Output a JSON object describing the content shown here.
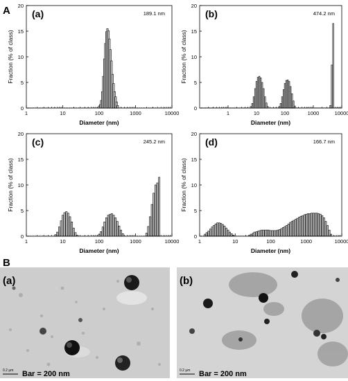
{
  "section_a_label": "A",
  "section_b_label": "B",
  "chart_data": [
    {
      "type": "bar",
      "panel_label": "(a)",
      "annotation": "189.1 nm",
      "xlabel": "Diameter (nm)",
      "ylabel": "Fraction (% of class)",
      "x_scale": "log",
      "xlim": [
        1,
        10000
      ],
      "ylim": [
        0,
        20
      ],
      "x_ticks": [
        "1",
        "10",
        "100",
        "1000",
        "10000"
      ],
      "y_ticks": [
        "0",
        "5",
        "10",
        "15",
        "20"
      ],
      "bars": [
        {
          "x": 100,
          "y": 0.3
        },
        {
          "x": 107,
          "y": 0.7
        },
        {
          "x": 114,
          "y": 1.5
        },
        {
          "x": 122,
          "y": 3.2
        },
        {
          "x": 130,
          "y": 6.2
        },
        {
          "x": 139,
          "y": 9.6
        },
        {
          "x": 148,
          "y": 12.6
        },
        {
          "x": 158,
          "y": 14.9
        },
        {
          "x": 169,
          "y": 15.5
        },
        {
          "x": 180,
          "y": 15.1
        },
        {
          "x": 192,
          "y": 13.5
        },
        {
          "x": 205,
          "y": 11.4
        },
        {
          "x": 219,
          "y": 9.2
        },
        {
          "x": 234,
          "y": 6.6
        },
        {
          "x": 250,
          "y": 4.8
        },
        {
          "x": 267,
          "y": 3.2
        },
        {
          "x": 285,
          "y": 2.2
        },
        {
          "x": 304,
          "y": 1.2
        },
        {
          "x": 325,
          "y": 0.5
        }
      ]
    },
    {
      "type": "bar",
      "panel_label": "(b)",
      "annotation": "474.2 nm",
      "xlabel": "Diameter (nm)",
      "ylabel": "Fraction (% of class)",
      "x_scale": "log",
      "xlim": [
        0.1,
        10000
      ],
      "ylim": [
        0,
        20
      ],
      "x_ticks": [
        "1",
        "10",
        "100",
        "1000",
        "10000"
      ],
      "y_ticks": [
        "0",
        "5",
        "10",
        "15",
        "20"
      ],
      "bars": [
        {
          "x": 6.3,
          "y": 0.3
        },
        {
          "x": 7.1,
          "y": 0.9
        },
        {
          "x": 8,
          "y": 2.2
        },
        {
          "x": 9,
          "y": 3.8
        },
        {
          "x": 10,
          "y": 5.2
        },
        {
          "x": 11.2,
          "y": 6
        },
        {
          "x": 12.6,
          "y": 6.2
        },
        {
          "x": 14.1,
          "y": 5.9
        },
        {
          "x": 15.8,
          "y": 5
        },
        {
          "x": 17.8,
          "y": 3.8
        },
        {
          "x": 20,
          "y": 2.2
        },
        {
          "x": 22.4,
          "y": 1
        },
        {
          "x": 25,
          "y": 0.3
        },
        {
          "x": 63,
          "y": 0.3
        },
        {
          "x": 71,
          "y": 0.9
        },
        {
          "x": 80,
          "y": 2.2
        },
        {
          "x": 90,
          "y": 3.6
        },
        {
          "x": 100,
          "y": 4.8
        },
        {
          "x": 112,
          "y": 5.4
        },
        {
          "x": 126,
          "y": 5.5
        },
        {
          "x": 141,
          "y": 5.2
        },
        {
          "x": 158,
          "y": 4.2
        },
        {
          "x": 178,
          "y": 2.8
        },
        {
          "x": 200,
          "y": 1.4
        },
        {
          "x": 224,
          "y": 0.4
        },
        {
          "x": 3980,
          "y": 0.5
        },
        {
          "x": 4470,
          "y": 8.4
        },
        {
          "x": 5010,
          "y": 16.5
        }
      ]
    },
    {
      "type": "bar",
      "panel_label": "(c)",
      "annotation": "245.2 nm",
      "xlabel": "Diameter (nm)",
      "ylabel": "Fraction (% of class)",
      "x_scale": "log",
      "xlim": [
        1,
        10000
      ],
      "ylim": [
        0,
        20
      ],
      "x_ticks": [
        "1",
        "10",
        "100",
        "1000",
        "10000"
      ],
      "y_ticks": [
        "0",
        "5",
        "10",
        "15",
        "20"
      ],
      "bars": [
        {
          "x": 6.3,
          "y": 0.3
        },
        {
          "x": 7.1,
          "y": 0.8
        },
        {
          "x": 8,
          "y": 1.8
        },
        {
          "x": 9,
          "y": 3
        },
        {
          "x": 10,
          "y": 4.1
        },
        {
          "x": 11.2,
          "y": 4.6
        },
        {
          "x": 12.6,
          "y": 4.8
        },
        {
          "x": 14.1,
          "y": 4.5
        },
        {
          "x": 15.8,
          "y": 3.8
        },
        {
          "x": 17.8,
          "y": 2.8
        },
        {
          "x": 20,
          "y": 1.6
        },
        {
          "x": 22.4,
          "y": 0.7
        },
        {
          "x": 25,
          "y": 0.2
        },
        {
          "x": 100,
          "y": 0.3
        },
        {
          "x": 112,
          "y": 0.9
        },
        {
          "x": 126,
          "y": 1.8
        },
        {
          "x": 141,
          "y": 2.8
        },
        {
          "x": 158,
          "y": 3.6
        },
        {
          "x": 178,
          "y": 4.1
        },
        {
          "x": 200,
          "y": 4.3
        },
        {
          "x": 224,
          "y": 4.4
        },
        {
          "x": 251,
          "y": 4.1
        },
        {
          "x": 282,
          "y": 3.6
        },
        {
          "x": 316,
          "y": 2.9
        },
        {
          "x": 355,
          "y": 2
        },
        {
          "x": 398,
          "y": 1.2
        },
        {
          "x": 447,
          "y": 0.5
        },
        {
          "x": 2000,
          "y": 0.6
        },
        {
          "x": 2240,
          "y": 1.9
        },
        {
          "x": 2510,
          "y": 3.8
        },
        {
          "x": 2820,
          "y": 6.2
        },
        {
          "x": 3160,
          "y": 8.4
        },
        {
          "x": 3550,
          "y": 10
        },
        {
          "x": 3980,
          "y": 10.4
        },
        {
          "x": 4470,
          "y": 11.5
        }
      ]
    },
    {
      "type": "bar",
      "panel_label": "(d)",
      "annotation": "166.7 nm",
      "xlabel": "Diameter (nm)",
      "ylabel": "Fraction (% of class)",
      "x_scale": "log",
      "xlim": [
        1,
        10000
      ],
      "ylim": [
        0,
        20
      ],
      "x_ticks": [
        "1",
        "10",
        "100",
        "1000",
        "10000"
      ],
      "y_ticks": [
        "0",
        "5",
        "10",
        "15",
        "20"
      ],
      "bars": [
        {
          "x": 1.41,
          "y": 0.4
        },
        {
          "x": 1.58,
          "y": 0.7
        },
        {
          "x": 1.78,
          "y": 1
        },
        {
          "x": 2,
          "y": 1.4
        },
        {
          "x": 2.24,
          "y": 1.8
        },
        {
          "x": 2.51,
          "y": 2.1
        },
        {
          "x": 2.82,
          "y": 2.4
        },
        {
          "x": 3.16,
          "y": 2.6
        },
        {
          "x": 3.55,
          "y": 2.6
        },
        {
          "x": 3.98,
          "y": 2.5
        },
        {
          "x": 4.47,
          "y": 2.3
        },
        {
          "x": 5.01,
          "y": 2
        },
        {
          "x": 5.62,
          "y": 1.6
        },
        {
          "x": 6.31,
          "y": 1.2
        },
        {
          "x": 7.08,
          "y": 0.8
        },
        {
          "x": 7.94,
          "y": 0.5
        },
        {
          "x": 8.91,
          "y": 0.2
        },
        {
          "x": 25,
          "y": 0.2
        },
        {
          "x": 28,
          "y": 0.4
        },
        {
          "x": 32,
          "y": 0.6
        },
        {
          "x": 35,
          "y": 0.8
        },
        {
          "x": 40,
          "y": 0.9
        },
        {
          "x": 45,
          "y": 1
        },
        {
          "x": 50,
          "y": 1.1
        },
        {
          "x": 56,
          "y": 1.2
        },
        {
          "x": 63,
          "y": 1.2
        },
        {
          "x": 71,
          "y": 1.2
        },
        {
          "x": 79,
          "y": 1.2
        },
        {
          "x": 89,
          "y": 1.2
        },
        {
          "x": 100,
          "y": 1.1
        },
        {
          "x": 112,
          "y": 1.1
        },
        {
          "x": 126,
          "y": 1.1
        },
        {
          "x": 141,
          "y": 1.1
        },
        {
          "x": 158,
          "y": 1.2
        },
        {
          "x": 178,
          "y": 1.3
        },
        {
          "x": 200,
          "y": 1.5
        },
        {
          "x": 224,
          "y": 1.7
        },
        {
          "x": 251,
          "y": 1.9
        },
        {
          "x": 282,
          "y": 2.1
        },
        {
          "x": 316,
          "y": 2.4
        },
        {
          "x": 355,
          "y": 2.7
        },
        {
          "x": 398,
          "y": 2.9
        },
        {
          "x": 447,
          "y": 3.1
        },
        {
          "x": 501,
          "y": 3.3
        },
        {
          "x": 562,
          "y": 3.5
        },
        {
          "x": 631,
          "y": 3.7
        },
        {
          "x": 708,
          "y": 3.9
        },
        {
          "x": 794,
          "y": 4
        },
        {
          "x": 891,
          "y": 4.2
        },
        {
          "x": 1000,
          "y": 4.3
        },
        {
          "x": 1120,
          "y": 4.4
        },
        {
          "x": 1260,
          "y": 4.4
        },
        {
          "x": 1410,
          "y": 4.5
        },
        {
          "x": 1580,
          "y": 4.5
        },
        {
          "x": 1780,
          "y": 4.5
        },
        {
          "x": 2000,
          "y": 4.5
        },
        {
          "x": 2240,
          "y": 4.4
        },
        {
          "x": 2510,
          "y": 4.3
        },
        {
          "x": 2820,
          "y": 4
        },
        {
          "x": 3160,
          "y": 3.6
        },
        {
          "x": 3550,
          "y": 2.9
        },
        {
          "x": 3980,
          "y": 2.1
        },
        {
          "x": 4470,
          "y": 1.2
        },
        {
          "x": 5010,
          "y": 0.4
        }
      ]
    }
  ],
  "micrographs": [
    {
      "label": "(a)",
      "scale_small": "0.2 μm",
      "scale_text": "Bar = 200 nm",
      "background": "#cfcfcf"
    },
    {
      "label": "(b)",
      "scale_small": "0.2 μm",
      "scale_text": "Bar = 200 nm",
      "background": "#d6d6d6"
    }
  ]
}
